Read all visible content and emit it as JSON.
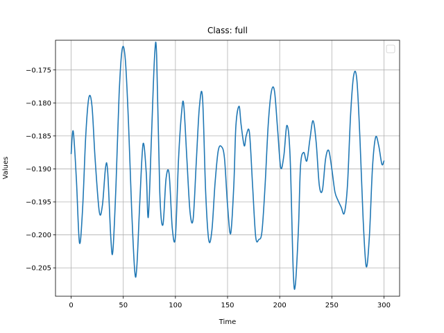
{
  "chart_data": {
    "type": "line",
    "title": "Class: full",
    "xlabel": "Time",
    "ylabel": "Values",
    "xlim": [
      -15,
      315
    ],
    "ylim": [
      -0.2093,
      -0.1705
    ],
    "grid": true,
    "legend": {
      "placement": "top-right",
      "entries": []
    },
    "x_ticks": [
      0,
      50,
      100,
      150,
      200,
      250,
      300
    ],
    "x_tick_labels": [
      "0",
      "50",
      "100",
      "150",
      "200",
      "250",
      "300"
    ],
    "y_ticks": [
      -0.175,
      -0.18,
      -0.185,
      -0.19,
      -0.195,
      -0.2,
      -0.205
    ],
    "y_tick_labels": [
      "−0.175",
      "−0.180",
      "−0.185",
      "−0.190",
      "−0.195",
      "−0.200",
      "−0.205"
    ],
    "colors": {
      "series": "#1f77b4",
      "grid": "#b0b0b0"
    },
    "series": [
      {
        "x": [
          0,
          2,
          5,
          8,
          11,
          14,
          17,
          20,
          23,
          27,
          30,
          33,
          35,
          38,
          40,
          43,
          46,
          49,
          52,
          55,
          58,
          61,
          63,
          66,
          69,
          72,
          74,
          77,
          80,
          82,
          85,
          88,
          91,
          94,
          97,
          100,
          103,
          106,
          108,
          111,
          114,
          117,
          120,
          123,
          126,
          129,
          132,
          135,
          138,
          141,
          144,
          147,
          150,
          153,
          156,
          158,
          161,
          163,
          166,
          168,
          171,
          174,
          177,
          180,
          183,
          186,
          189,
          192,
          195,
          198,
          201,
          204,
          207,
          210,
          213,
          215,
          218,
          220,
          223,
          226,
          229,
          232,
          235,
          238,
          241,
          244,
          247,
          250,
          253,
          256,
          259,
          262,
          265,
          268,
          271,
          274,
          277,
          280,
          283,
          286,
          289,
          292,
          295,
          298,
          300
        ],
        "y": [
          -0.1877,
          -0.1843,
          -0.1915,
          -0.2012,
          -0.196,
          -0.185,
          -0.1792,
          -0.1805,
          -0.1885,
          -0.1965,
          -0.1955,
          -0.1898,
          -0.1903,
          -0.2003,
          -0.2025,
          -0.1925,
          -0.1787,
          -0.1718,
          -0.1735,
          -0.183,
          -0.196,
          -0.2055,
          -0.2048,
          -0.1945,
          -0.1862,
          -0.1905,
          -0.1973,
          -0.1853,
          -0.173,
          -0.1728,
          -0.1935,
          -0.1985,
          -0.1915,
          -0.1908,
          -0.199,
          -0.2003,
          -0.1885,
          -0.1813,
          -0.1803,
          -0.1885,
          -0.1965,
          -0.1976,
          -0.189,
          -0.1806,
          -0.1792,
          -0.1935,
          -0.2008,
          -0.1993,
          -0.1922,
          -0.1873,
          -0.1866,
          -0.1883,
          -0.1955,
          -0.1998,
          -0.1925,
          -0.1835,
          -0.1805,
          -0.1833,
          -0.1865,
          -0.1849,
          -0.1845,
          -0.1925,
          -0.2003,
          -0.2007,
          -0.1995,
          -0.1925,
          -0.1833,
          -0.1783,
          -0.1782,
          -0.184,
          -0.1898,
          -0.188,
          -0.1834,
          -0.1882,
          -0.2055,
          -0.2076,
          -0.199,
          -0.1895,
          -0.1875,
          -0.1888,
          -0.1855,
          -0.1827,
          -0.186,
          -0.1925,
          -0.1932,
          -0.1885,
          -0.1872,
          -0.19,
          -0.1935,
          -0.1948,
          -0.1958,
          -0.1967,
          -0.1925,
          -0.1818,
          -0.1758,
          -0.1765,
          -0.1855,
          -0.1975,
          -0.2048,
          -0.2003,
          -0.1898,
          -0.1852,
          -0.1865,
          -0.1893,
          -0.1888
        ]
      }
    ]
  }
}
